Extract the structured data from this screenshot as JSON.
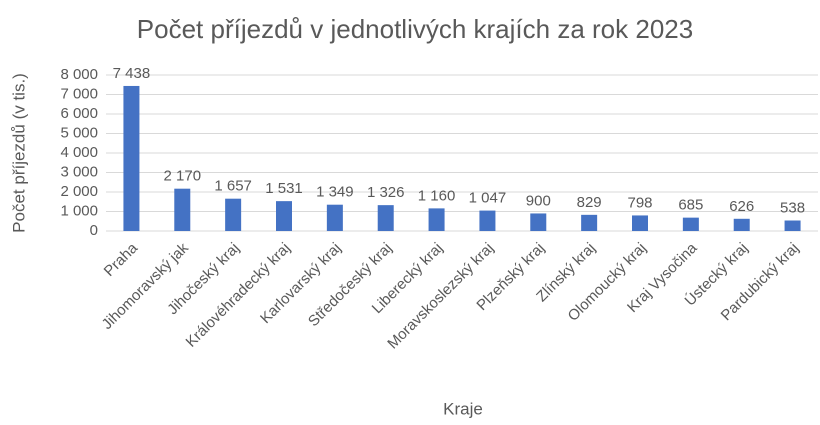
{
  "chart_data": {
    "type": "bar",
    "title": "Počet příjezdů v jednotlivých krajích za rok 2023",
    "x_label": "Kraje",
    "y_label": "Počet příjezdů (v tis.)",
    "categories": [
      "Praha",
      "Jihomoravský jak",
      "Jihočeský kraj",
      "Královéhradecký kraj",
      "Karlovarský kraj",
      "Středočeský kraj",
      "Liberecký kraj",
      "Moravskoslezský kraj",
      "Plzeňský kraj",
      "Zlínský kraj",
      "Olomoucký kraj",
      "Kraj Vysočina",
      "Ústecký kraj",
      "Pardubický kraj"
    ],
    "values": [
      7438,
      2170,
      1657,
      1531,
      1349,
      1326,
      1160,
      1047,
      900,
      829,
      798,
      685,
      626,
      538
    ],
    "value_labels": [
      "7 438",
      "2 170",
      "1 657",
      "1 531",
      "1 349",
      "1 326",
      "1 160",
      "1 047",
      "900",
      "829",
      "798",
      "685",
      "626",
      "538"
    ],
    "color": "#4472c4",
    "ylim": [
      0,
      8000
    ],
    "yticks": [
      0,
      {
        "value": 1000,
        "label": "1 000"
      },
      {
        "value": 2000,
        "label": "2 000"
      },
      {
        "value": 3000,
        "label": "3 000"
      },
      {
        "value": 4000,
        "label": "4 000"
      },
      {
        "value": 5000,
        "label": "5 000"
      },
      {
        "value": 6000,
        "label": "6 000"
      },
      {
        "value": 7000,
        "label": "7 000"
      },
      {
        "value": 8000,
        "label": "8 000"
      }
    ],
    "grid": true
  }
}
